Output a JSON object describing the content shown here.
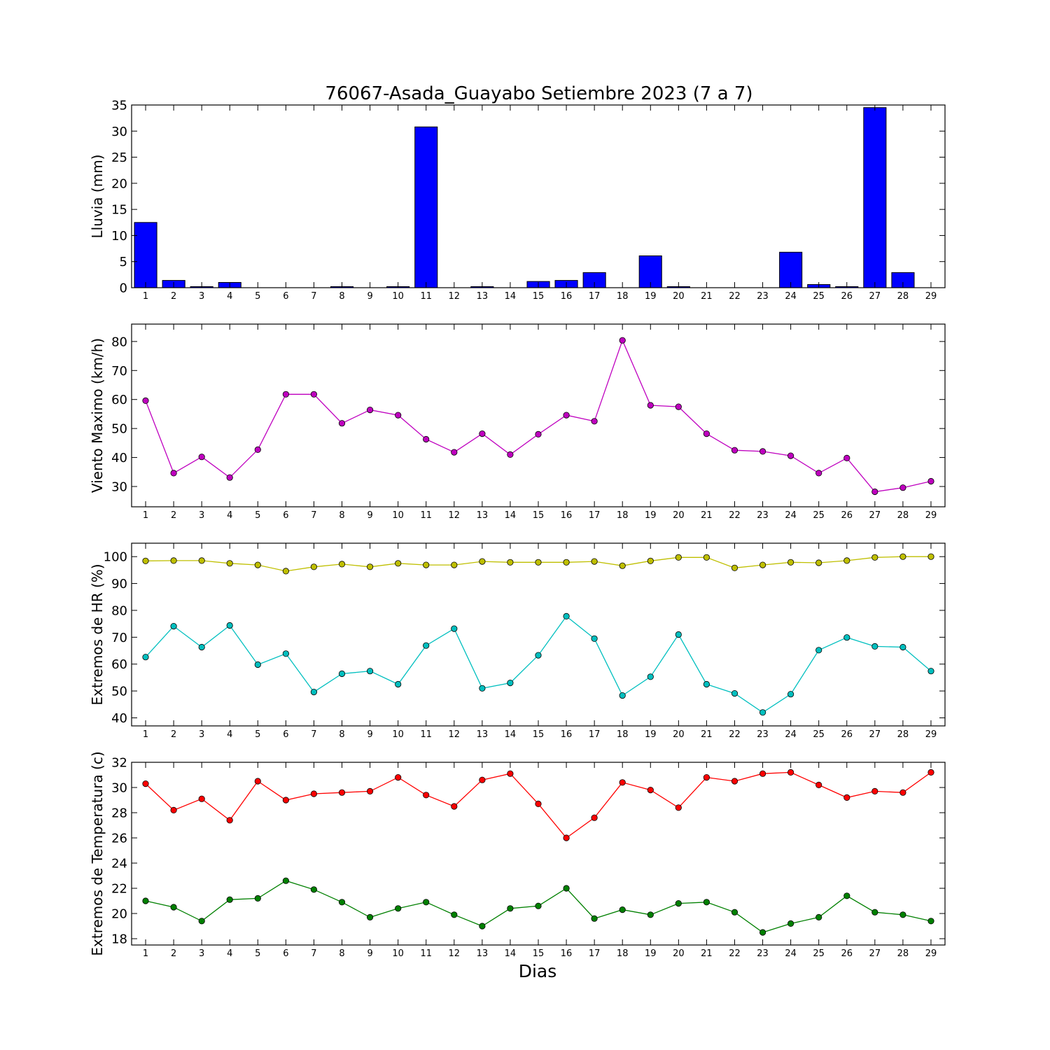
{
  "chart_data": [
    {
      "type": "bar",
      "title": "76067-Asada_Guayabo Setiembre 2023  (7 a 7)",
      "ylabel": "Lluvia (mm)",
      "xlabel": "",
      "x": [
        1,
        2,
        3,
        4,
        5,
        6,
        7,
        8,
        9,
        10,
        11,
        12,
        13,
        14,
        15,
        16,
        17,
        18,
        19,
        20,
        21,
        22,
        23,
        24,
        25,
        26,
        27,
        28,
        29
      ],
      "xlim": [
        0.5,
        29.5
      ],
      "ylim": [
        0,
        35
      ],
      "yticks": [
        0,
        5,
        10,
        15,
        20,
        25,
        30,
        35
      ],
      "series": [
        {
          "color": "#0000ff",
          "values": [
            12.5,
            1.4,
            0.2,
            1.0,
            0,
            0,
            0,
            0.2,
            0,
            0.2,
            30.8,
            0,
            0.2,
            0,
            1.2,
            1.4,
            2.9,
            0,
            6.1,
            0.2,
            0,
            0,
            0,
            6.8,
            0.6,
            0.2,
            34.5,
            2.9,
            0
          ]
        }
      ]
    },
    {
      "type": "line",
      "title": "",
      "ylabel": "Viento Maximo (km/h)",
      "xlabel": "",
      "x": [
        1,
        2,
        3,
        4,
        5,
        6,
        7,
        8,
        9,
        10,
        11,
        12,
        13,
        14,
        15,
        16,
        17,
        18,
        19,
        20,
        21,
        22,
        23,
        24,
        25,
        26,
        27,
        28,
        29
      ],
      "xlim": [
        0.5,
        29.5
      ],
      "ylim": [
        23,
        86
      ],
      "yticks": [
        30,
        40,
        50,
        60,
        70,
        80
      ],
      "series": [
        {
          "color": "#bf00bf",
          "values": [
            59.6,
            34.6,
            40.2,
            33.1,
            42.7,
            61.8,
            61.8,
            51.8,
            56.4,
            54.6,
            46.3,
            41.8,
            48.2,
            41.0,
            48.0,
            54.6,
            52.5,
            80.4,
            58.0,
            57.5,
            48.2,
            42.5,
            42.1,
            40.6,
            34.6,
            39.8,
            28.2,
            29.6,
            31.8
          ]
        }
      ]
    },
    {
      "type": "line",
      "title": "",
      "ylabel": "Extremos de HR (%)",
      "xlabel": "",
      "x": [
        1,
        2,
        3,
        4,
        5,
        6,
        7,
        8,
        9,
        10,
        11,
        12,
        13,
        14,
        15,
        16,
        17,
        18,
        19,
        20,
        21,
        22,
        23,
        24,
        25,
        26,
        27,
        28,
        29
      ],
      "xlim": [
        0.5,
        29.5
      ],
      "ylim": [
        37,
        105
      ],
      "yticks": [
        40,
        50,
        60,
        70,
        80,
        90,
        100
      ],
      "series": [
        {
          "color": "#bfbf00",
          "values": [
            98.4,
            98.5,
            98.5,
            97.5,
            96.9,
            94.6,
            96.2,
            97.2,
            96.2,
            97.5,
            96.9,
            96.9,
            98.2,
            97.9,
            97.9,
            97.9,
            98.2,
            96.6,
            98.4,
            99.7,
            99.7,
            95.8,
            96.9,
            97.9,
            97.7,
            98.5,
            99.7,
            100,
            100
          ]
        },
        {
          "color": "#00bfbf",
          "values": [
            62.6,
            74.1,
            66.3,
            74.4,
            59.8,
            63.9,
            49.6,
            56.4,
            57.4,
            52.5,
            66.9,
            73.2,
            51.0,
            53.0,
            63.3,
            77.8,
            69.5,
            48.3,
            55.3,
            71.0,
            52.5,
            49.1,
            42.0,
            48.8,
            65.2,
            69.9,
            66.6,
            66.3,
            57.4
          ]
        }
      ]
    },
    {
      "type": "line",
      "title": "",
      "ylabel": "Extremos de Temperatura (c)",
      "xlabel": "Dias",
      "x": [
        1,
        2,
        3,
        4,
        5,
        6,
        7,
        8,
        9,
        10,
        11,
        12,
        13,
        14,
        15,
        16,
        17,
        18,
        19,
        20,
        21,
        22,
        23,
        24,
        25,
        26,
        27,
        28,
        29
      ],
      "xlim": [
        0.5,
        29.5
      ],
      "ylim": [
        17.5,
        32
      ],
      "yticks": [
        18,
        20,
        22,
        24,
        26,
        28,
        30,
        32
      ],
      "series": [
        {
          "color": "#ff0000",
          "values": [
            30.3,
            28.2,
            29.1,
            27.4,
            30.5,
            29.0,
            29.5,
            29.6,
            29.7,
            30.8,
            29.4,
            28.5,
            30.6,
            31.1,
            28.7,
            26.0,
            27.6,
            30.4,
            29.8,
            28.4,
            30.8,
            30.5,
            31.1,
            31.2,
            30.2,
            29.2,
            29.7,
            29.6,
            31.2
          ]
        },
        {
          "color": "#008000",
          "values": [
            21.0,
            20.5,
            19.4,
            21.1,
            21.2,
            22.6,
            21.9,
            20.9,
            19.7,
            20.4,
            20.9,
            19.9,
            19.0,
            20.4,
            20.6,
            22.0,
            19.6,
            20.3,
            19.9,
            20.8,
            20.9,
            20.1,
            18.5,
            19.2,
            19.7,
            21.4,
            20.1,
            19.9,
            19.4
          ]
        }
      ]
    }
  ]
}
